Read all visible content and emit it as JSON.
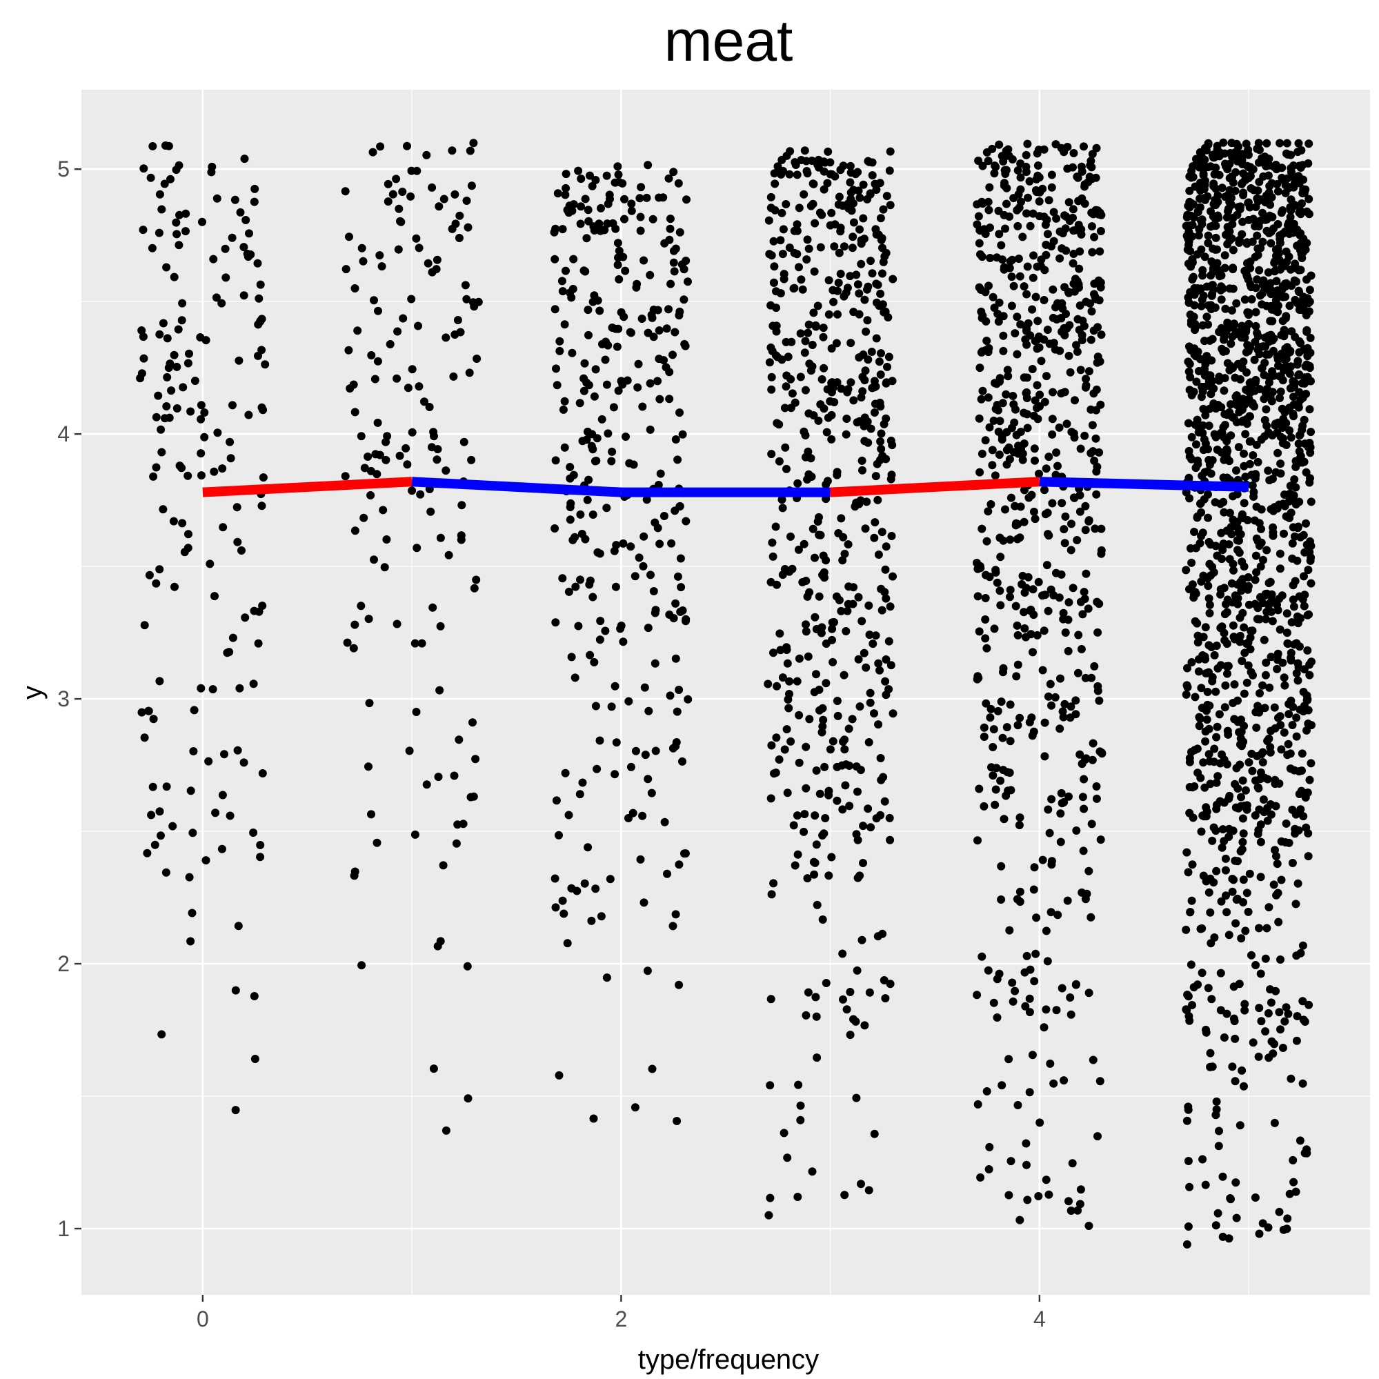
{
  "chart_data": {
    "type": "scatter",
    "title": "meat",
    "xlabel": "type/frequency",
    "ylabel": "y",
    "xlim": [
      -0.58,
      5.58
    ],
    "ylim": [
      0.75,
      5.3
    ],
    "x_ticks": [
      {
        "value": 0,
        "label": "0"
      },
      {
        "value": 2,
        "label": "2"
      },
      {
        "value": 4,
        "label": "4"
      }
    ],
    "y_ticks": [
      {
        "value": 1,
        "label": "1"
      },
      {
        "value": 2,
        "label": "2"
      },
      {
        "value": 3,
        "label": "3"
      },
      {
        "value": 4,
        "label": "4"
      },
      {
        "value": 5,
        "label": "5"
      }
    ],
    "minor_x_gridlines": [
      1,
      3,
      5
    ],
    "minor_y_gridlines": [
      1.5,
      2.5,
      3.5,
      4.5
    ],
    "grid": true,
    "panel_background": "#ebebeb",
    "points": {
      "color": "#000000",
      "groups": [
        {
          "x": 0,
          "count": 180,
          "jitter_width": 0.3,
          "y_range": [
            1.22,
            5.1
          ]
        },
        {
          "x": 1,
          "count": 160,
          "jitter_width": 0.32,
          "y_range": [
            1.27,
            5.1
          ]
        },
        {
          "x": 2,
          "count": 330,
          "jitter_width": 0.32,
          "y_range": [
            1.39,
            5.02
          ]
        },
        {
          "x": 3,
          "count": 560,
          "jitter_width": 0.3,
          "y_range": [
            1.05,
            5.07
          ]
        },
        {
          "x": 4,
          "count": 680,
          "jitter_width": 0.3,
          "y_range": [
            1.01,
            5.1
          ]
        },
        {
          "x": 5,
          "count": 1500,
          "jitter_width": 0.3,
          "y_range": [
            0.94,
            5.1
          ]
        }
      ]
    },
    "mean_segments": [
      {
        "x": [
          0,
          1
        ],
        "y": [
          3.78,
          3.82
        ],
        "color": "#ff0000"
      },
      {
        "x": [
          1,
          2
        ],
        "y": [
          3.82,
          3.78
        ],
        "color": "#0000ff"
      },
      {
        "x": [
          2,
          3
        ],
        "y": [
          3.78,
          3.78
        ],
        "color": "#0000ff"
      },
      {
        "x": [
          3,
          4
        ],
        "y": [
          3.78,
          3.82
        ],
        "color": "#ff0000"
      },
      {
        "x": [
          4,
          5
        ],
        "y": [
          3.82,
          3.8
        ],
        "color": "#0000ff"
      }
    ]
  }
}
